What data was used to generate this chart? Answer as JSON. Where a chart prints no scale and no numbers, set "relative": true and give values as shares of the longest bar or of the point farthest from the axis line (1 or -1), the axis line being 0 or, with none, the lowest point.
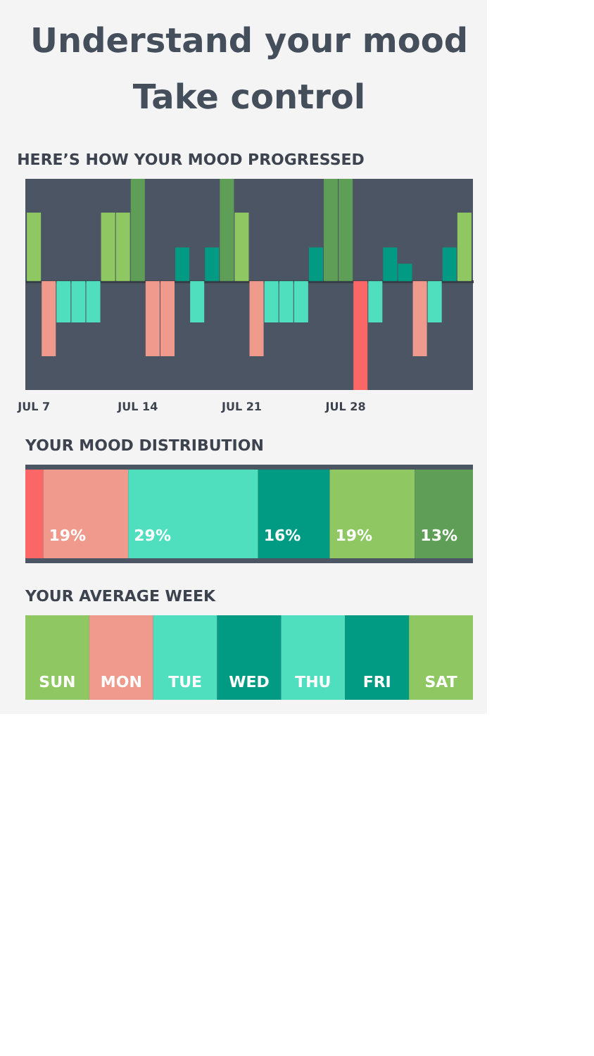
{
  "chart_data": [
    {
      "type": "other",
      "title": "Understand your mood",
      "subtitle": "Take control"
    },
    {
      "type": "bar",
      "relative": true,
      "title": "HERE’S HOW YOUR MOOD PROGRESSED",
      "categories": [
        "JUL 7",
        null,
        null,
        null,
        null,
        null,
        null,
        "JUL 14",
        null,
        null,
        null,
        null,
        null,
        null,
        "JUL 21",
        null,
        null,
        null,
        null,
        null,
        null,
        "JUL 28",
        null,
        null,
        null,
        null,
        null,
        null,
        null,
        null
      ],
      "values": [
        0.63,
        -0.69,
        -0.38,
        -0.38,
        -0.38,
        0.63,
        0.63,
        0.94,
        -0.69,
        -0.69,
        0.31,
        -0.38,
        0.31,
        0.94,
        0.63,
        -0.69,
        -0.38,
        -0.38,
        -0.38,
        0.31,
        0.94,
        0.94,
        -1,
        -0.38,
        0.31,
        0.16,
        -0.69,
        -0.38,
        0.31,
        0.63
      ],
      "colors": [
        "#8fc862",
        "#ef9a8c",
        "#4fdfbf",
        "#4fdfbf",
        "#4fdfbf",
        "#8fc862",
        "#8fc862",
        "#5e9e57",
        "#ef9a8c",
        "#ef9a8c",
        "#009b82",
        "#4fdfbf",
        "#009b82",
        "#5e9e57",
        "#8fc862",
        "#ef9a8c",
        "#4fdfbf",
        "#4fdfbf",
        "#4fdfbf",
        "#009b82",
        "#5e9e57",
        "#5e9e57",
        "#fb6767",
        "#4fdfbf",
        "#009b82",
        "#009b82",
        "#ef9a8c",
        "#4fdfbf",
        "#009b82",
        "#8fc862"
      ]
    },
    {
      "type": "bar",
      "orientation": "horizontal",
      "stacked": true,
      "title": "YOUR MOOD DISTRIBUTION",
      "series": [
        {
          "color": "#fb6767",
          "values": [
            4
          ],
          "value_labels": [
            null
          ]
        },
        {
          "color": "#ef9a8c",
          "values": [
            19
          ],
          "value_labels": [
            "19%"
          ]
        },
        {
          "color": "#4fdfbf",
          "values": [
            29
          ],
          "value_labels": [
            "29%"
          ]
        },
        {
          "color": "#009b82",
          "values": [
            16
          ],
          "value_labels": [
            "16%"
          ]
        },
        {
          "color": "#8fc862",
          "values": [
            19
          ],
          "value_labels": [
            "19%"
          ]
        },
        {
          "color": "#5e9e57",
          "values": [
            13
          ],
          "value_labels": [
            "13%"
          ]
        }
      ]
    },
    {
      "type": "other",
      "title": "YOUR AVERAGE WEEK",
      "categories": [
        "SUN",
        "MON",
        "TUE",
        "WED",
        "THU",
        "FRI",
        "SAT"
      ],
      "colors": [
        "#8fc862",
        "#ef9a8c",
        "#4fdfbf",
        "#009b82",
        "#4fdfbf",
        "#009b82",
        "#8fc862"
      ]
    }
  ]
}
